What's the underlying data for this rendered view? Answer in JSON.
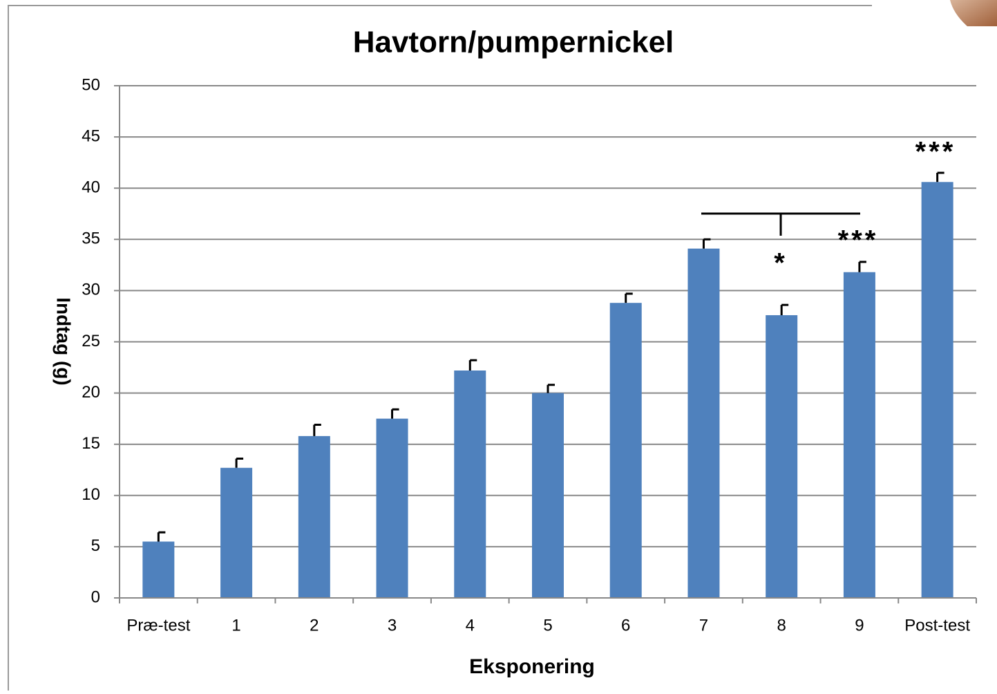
{
  "chart_data": {
    "type": "bar",
    "title": "Havtorn/pumpernickel",
    "x_label": "Eksponering",
    "y_label": "Indtag (g)",
    "categories": [
      "Præ-test",
      "1",
      "2",
      "3",
      "4",
      "5",
      "6",
      "7",
      "8",
      "9",
      "Post-test"
    ],
    "values": [
      5.5,
      12.7,
      15.8,
      17.5,
      22.2,
      20.0,
      28.8,
      34.1,
      27.6,
      31.8,
      40.6
    ],
    "errors": [
      0.9,
      0.9,
      1.1,
      0.9,
      1.0,
      0.8,
      0.9,
      0.9,
      1.0,
      1.0,
      0.9
    ],
    "color": "#4f81bd",
    "ylim": [
      0,
      50
    ],
    "yticks": [
      0,
      5,
      10,
      15,
      20,
      25,
      30,
      35,
      40,
      45,
      50
    ],
    "grid": true,
    "annotations": [
      "*",
      "***",
      "***"
    ]
  }
}
